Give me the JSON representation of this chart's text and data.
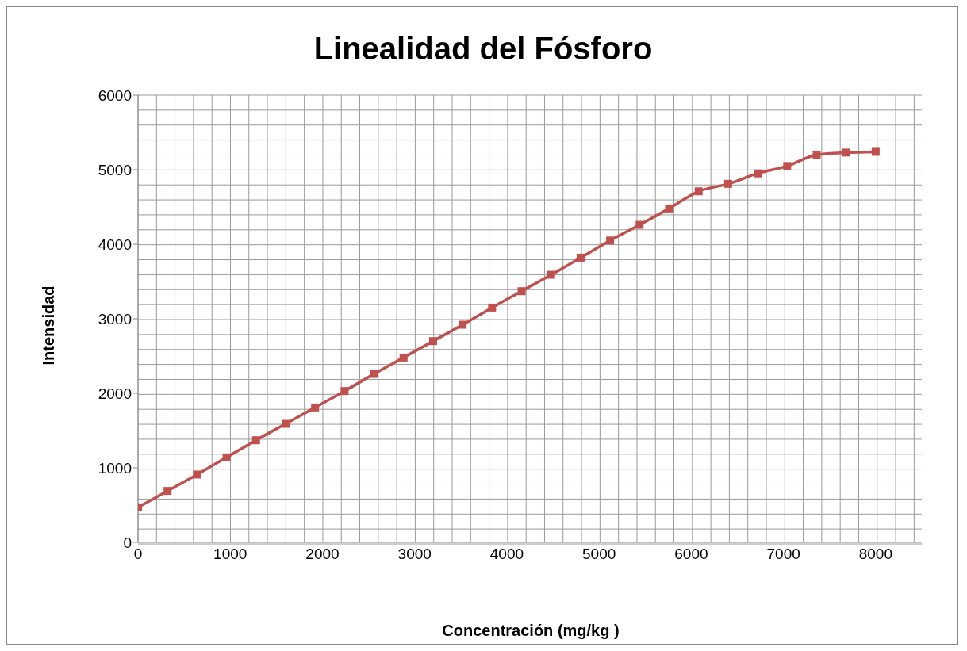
{
  "chart_data": {
    "type": "line",
    "title": "Linealidad del Fósforo",
    "xlabel": "Concentración (mg/kg )",
    "ylabel": "Intensidad",
    "x": [
      0,
      320,
      640,
      960,
      1280,
      1600,
      1920,
      2240,
      2560,
      2880,
      3200,
      3520,
      3840,
      4160,
      4480,
      4800,
      5120,
      5440,
      5760,
      6080,
      6400,
      6720,
      7040,
      7360,
      7680,
      8000
    ],
    "series": [
      {
        "color": "#c0504d",
        "values": [
          470,
          690,
          910,
          1140,
          1370,
          1590,
          1810,
          2030,
          2260,
          2480,
          2700,
          2920,
          3150,
          3370,
          3590,
          3820,
          4050,
          4260,
          4480,
          4710,
          4810,
          4950,
          5050,
          5200,
          5230,
          5240
        ]
      }
    ],
    "xlim": [
      0,
      8500
    ],
    "xticks": [
      0,
      1000,
      2000,
      3000,
      4000,
      5000,
      6000,
      7000,
      8000
    ],
    "ylim": [
      0,
      6000
    ],
    "yticks": [
      0,
      1000,
      2000,
      3000,
      4000,
      5000,
      6000
    ],
    "grid": true,
    "marker": "square",
    "line_style": "solid"
  }
}
